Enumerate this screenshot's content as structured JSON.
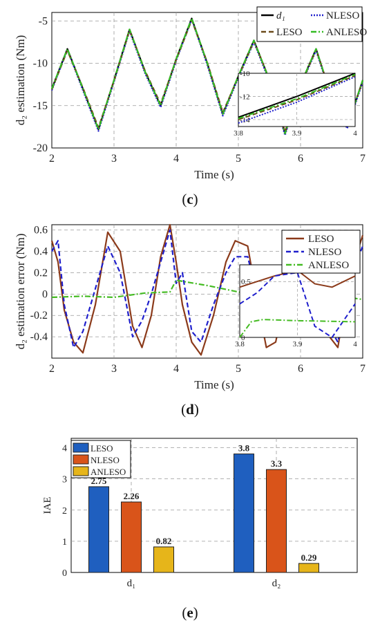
{
  "panels": {
    "c": {
      "open": "(",
      "letter": "c",
      "close": ")"
    },
    "d": {
      "open": "(",
      "letter": "d",
      "close": ")"
    },
    "e": {
      "open": "(",
      "letter": "e",
      "close": ")"
    }
  },
  "chart_data": [
    {
      "type": "line",
      "id": "c",
      "xlabel": "Time (s)",
      "ylabel": "d₂ estimation (Nm)",
      "xlim": [
        2,
        7
      ],
      "ylim": [
        -20,
        -4
      ],
      "xticks": [
        "2",
        "3",
        "4",
        "5",
        "6",
        "7"
      ],
      "yticks": [
        "-5",
        "-10",
        "-15",
        "-20"
      ],
      "grid": true,
      "legend_position": "top-right",
      "series": [
        {
          "name": "d₁",
          "color": "#000000",
          "style": "solid",
          "x": [
            2.0,
            2.25,
            2.5,
            2.75,
            3.0,
            3.25,
            3.5,
            3.75,
            4.0,
            4.25,
            4.5,
            4.75,
            5.0,
            5.25,
            5.5,
            5.75,
            6.0,
            6.25,
            6.5,
            6.75,
            7.0
          ],
          "y": [
            -13.0,
            -8.3,
            -13.0,
            -17.8,
            -12.0,
            -6.0,
            -11.0,
            -15.0,
            -9.5,
            -4.7,
            -10.0,
            -16.0,
            -11.5,
            -7.3,
            -12.0,
            -18.3,
            -12.5,
            -8.3,
            -14.0,
            -17.5,
            -12.0
          ]
        },
        {
          "name": "NLESO",
          "color": "#1f1fcc",
          "style": "dotted",
          "x": [
            2.0,
            2.25,
            2.5,
            2.75,
            3.0,
            3.25,
            3.5,
            3.75,
            4.0,
            4.25,
            4.5,
            4.75,
            5.0,
            5.25,
            5.5,
            5.75,
            6.0,
            6.25,
            6.5,
            6.75,
            7.0
          ],
          "y": [
            -13.2,
            -8.4,
            -13.2,
            -18.0,
            -12.2,
            -6.2,
            -11.2,
            -15.2,
            -9.7,
            -4.8,
            -10.2,
            -16.2,
            -11.7,
            -7.5,
            -12.2,
            -18.5,
            -12.7,
            -8.5,
            -14.2,
            -17.7,
            -12.2
          ]
        },
        {
          "name": "LESO",
          "color": "#6b4a1a",
          "style": "dashed",
          "x": [
            2.0,
            2.25,
            2.5,
            2.75,
            3.0,
            3.25,
            3.5,
            3.75,
            4.0,
            4.25,
            4.5,
            4.75,
            5.0,
            5.25,
            5.5,
            5.75,
            6.0,
            6.25,
            6.5,
            6.75,
            7.0
          ],
          "y": [
            -13.1,
            -8.5,
            -12.9,
            -17.6,
            -12.1,
            -6.1,
            -10.9,
            -14.8,
            -9.6,
            -4.9,
            -9.9,
            -15.8,
            -11.6,
            -7.4,
            -11.9,
            -18.1,
            -12.6,
            -8.4,
            -13.9,
            -17.3,
            -12.1
          ]
        },
        {
          "name": "ANLESO",
          "color": "#33bb22",
          "style": "dashdot",
          "x": [
            2.0,
            2.25,
            2.5,
            2.75,
            3.0,
            3.25,
            3.5,
            3.75,
            4.0,
            4.25,
            4.5,
            4.75,
            5.0,
            5.25,
            5.5,
            5.75,
            6.0,
            6.25,
            6.5,
            6.75,
            7.0
          ],
          "y": [
            -13.0,
            -8.3,
            -13.0,
            -17.8,
            -12.0,
            -6.0,
            -11.0,
            -15.0,
            -9.5,
            -4.7,
            -10.0,
            -16.0,
            -11.5,
            -7.3,
            -12.0,
            -18.3,
            -12.5,
            -8.3,
            -14.0,
            -17.5,
            -12.0
          ]
        }
      ],
      "inset": {
        "xlim": [
          3.8,
          4.0
        ],
        "ylim": [
          -14.6,
          -10
        ],
        "xticks": [
          "3.8",
          "3.9",
          "4"
        ],
        "yticks": [
          "-10",
          "-12",
          "-14"
        ],
        "series": [
          {
            "color": "#000000",
            "style": "solid",
            "x": [
              3.8,
              3.9,
              4.0
            ],
            "y": [
              -13.8,
              -12.0,
              -10.0
            ]
          },
          {
            "color": "#1f1fcc",
            "style": "dotted",
            "x": [
              3.8,
              3.9,
              4.0
            ],
            "y": [
              -14.3,
              -12.5,
              -10.3
            ]
          },
          {
            "color": "#6b4a1a",
            "style": "dashed",
            "x": [
              3.8,
              3.9,
              4.0
            ],
            "y": [
              -14.0,
              -12.3,
              -10.2
            ]
          },
          {
            "color": "#33bb22",
            "style": "dashdot",
            "x": [
              3.8,
              3.9,
              4.0
            ],
            "y": [
              -13.9,
              -12.2,
              -10.1
            ]
          }
        ]
      }
    },
    {
      "type": "line",
      "id": "d",
      "xlabel": "Time (s)",
      "ylabel": "d₂ estimation error (Nm)",
      "xlim": [
        2,
        7
      ],
      "ylim": [
        -0.6,
        0.65
      ],
      "xticks": [
        "2",
        "3",
        "4",
        "5",
        "6",
        "7"
      ],
      "yticks": [
        "0.6",
        "0.4",
        "0.2",
        "0",
        "-0.2",
        "-0.4"
      ],
      "grid": true,
      "legend_position": "top-right",
      "series": [
        {
          "name": "LESO",
          "color": "#8b3a1a",
          "style": "solid",
          "x": [
            2.0,
            2.1,
            2.2,
            2.35,
            2.5,
            2.7,
            2.9,
            3.1,
            3.3,
            3.45,
            3.6,
            3.75,
            3.9,
            4.0,
            4.1,
            4.25,
            4.4,
            4.6,
            4.8,
            4.95,
            5.15,
            5.3,
            5.45,
            5.6,
            5.8,
            6.0,
            6.2,
            6.4,
            6.6,
            6.8,
            7.0
          ],
          "y": [
            0.5,
            0.3,
            -0.15,
            -0.45,
            -0.55,
            -0.1,
            0.58,
            0.4,
            -0.3,
            -0.5,
            -0.2,
            0.35,
            0.65,
            0.3,
            -0.1,
            -0.45,
            -0.57,
            -0.2,
            0.3,
            0.5,
            0.45,
            -0.05,
            -0.5,
            -0.45,
            0.1,
            0.55,
            0.2,
            -0.35,
            -0.5,
            0.2,
            0.55
          ]
        },
        {
          "name": "NLESO",
          "color": "#1f1fcc",
          "style": "dashed",
          "x": [
            2.0,
            2.1,
            2.2,
            2.35,
            2.5,
            2.7,
            2.9,
            3.1,
            3.3,
            3.45,
            3.6,
            3.75,
            3.9,
            4.0,
            4.1,
            4.25,
            4.4,
            4.6,
            4.8,
            4.95,
            5.15,
            5.3,
            5.45,
            5.6,
            5.8,
            6.0,
            6.2,
            6.4,
            6.6,
            6.8,
            7.0
          ],
          "y": [
            0.4,
            0.5,
            -0.1,
            -0.5,
            -0.35,
            0.05,
            0.45,
            0.2,
            -0.4,
            -0.25,
            0.0,
            0.3,
            0.6,
            0.1,
            0.2,
            -0.35,
            -0.45,
            -0.1,
            0.2,
            0.35,
            0.35,
            0.0,
            -0.3,
            -0.35,
            0.1,
            0.45,
            0.1,
            -0.25,
            -0.45,
            0.15,
            0.45
          ]
        },
        {
          "name": "ANLESO",
          "color": "#44bb22",
          "style": "dashdot",
          "x": [
            2.0,
            2.5,
            3.0,
            3.5,
            3.9,
            4.0,
            4.2,
            4.5,
            5.0,
            5.5,
            6.0,
            6.5,
            7.0
          ],
          "y": [
            -0.03,
            -0.02,
            -0.03,
            0.01,
            0.02,
            0.13,
            0.11,
            0.08,
            0.02,
            -0.03,
            -0.03,
            -0.01,
            -0.05
          ]
        }
      ],
      "inset": {
        "xlim": [
          3.8,
          4.0
        ],
        "ylim": [
          0,
          0.65
        ],
        "xticks": [
          "3.8",
          "3.9",
          "4"
        ],
        "yticks": [
          "0.5",
          "0"
        ],
        "series": [
          {
            "color": "#8b3a1a",
            "style": "solid",
            "x": [
              3.8,
              3.83,
              3.86,
              3.9,
              3.93,
              3.96,
              4.0
            ],
            "y": [
              0.45,
              0.5,
              0.55,
              0.6,
              0.48,
              0.45,
              0.55
            ]
          },
          {
            "color": "#1f1fcc",
            "style": "dashed",
            "x": [
              3.8,
              3.83,
              3.86,
              3.9,
              3.93,
              3.96,
              4.0
            ],
            "y": [
              0.3,
              0.4,
              0.55,
              0.58,
              0.1,
              0.0,
              0.3
            ]
          },
          {
            "color": "#44bb22",
            "style": "dashdot",
            "x": [
              3.8,
              3.82,
              3.84,
              3.9,
              4.0
            ],
            "y": [
              0.0,
              0.14,
              0.16,
              0.15,
              0.14
            ]
          }
        ]
      }
    },
    {
      "type": "bar",
      "id": "e",
      "ylabel": "IAE",
      "ylim": [
        0,
        4.3
      ],
      "yticks": [
        "0",
        "1",
        "2",
        "3",
        "4"
      ],
      "categories": [
        "d₁",
        "d₂"
      ],
      "grid": true,
      "legend_position": "top-left",
      "series": [
        {
          "name": "LESO",
          "color": "#1f5fbf",
          "values": [
            2.75,
            3.8
          ],
          "labels": [
            "2.75",
            "3.8"
          ]
        },
        {
          "name": "NLESO",
          "color": "#d9541a",
          "values": [
            2.26,
            3.3
          ],
          "labels": [
            "2.26",
            "3.3"
          ]
        },
        {
          "name": "ANLESO",
          "color": "#e6b51a",
          "values": [
            0.82,
            0.29
          ],
          "labels": [
            "0.82",
            "0.29"
          ]
        }
      ]
    }
  ]
}
